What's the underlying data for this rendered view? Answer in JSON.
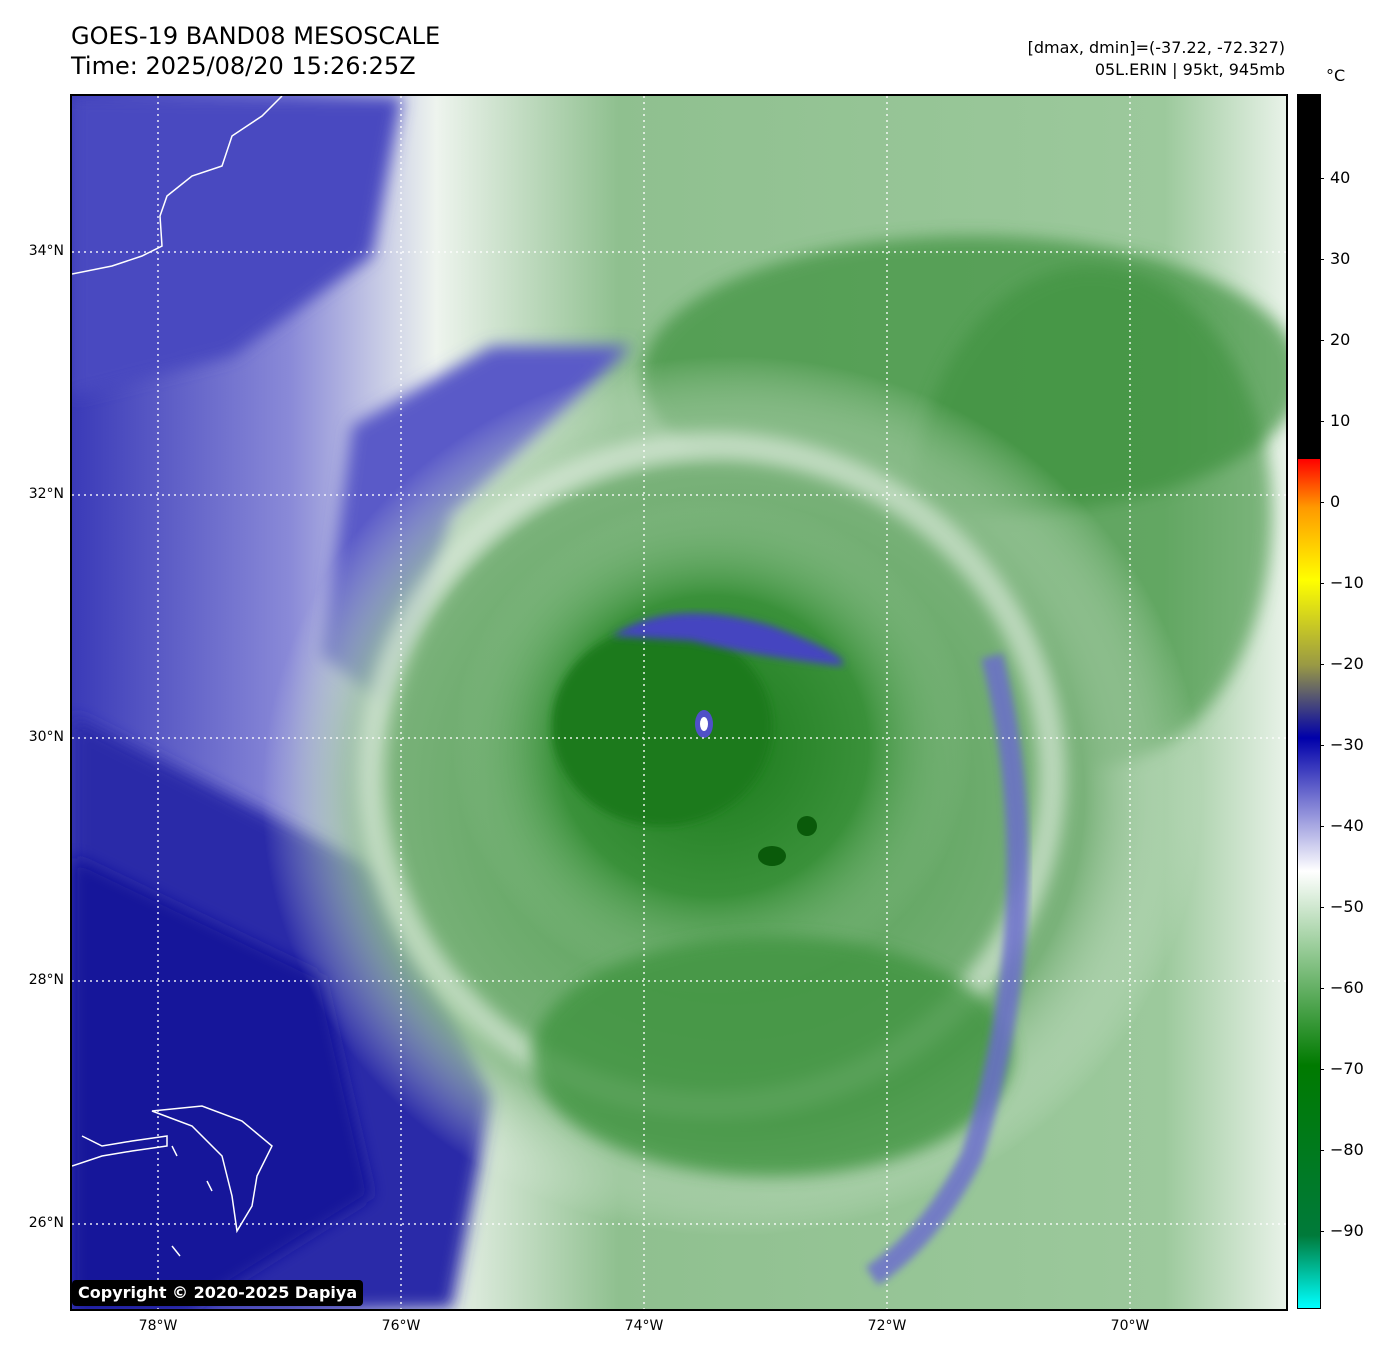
{
  "header": {
    "title": "GOES-19 BAND08 MESOSCALE",
    "time": "Time: 2025/08/20 15:26:25Z",
    "range_text": "[dmax, dmin]=(-37.22, -72.327)",
    "storm_text": "05L.ERIN | 95kt, 945mb"
  },
  "map": {
    "lat_labels": [
      "34°N",
      "32°N",
      "30°N",
      "28°N",
      "26°N"
    ],
    "lon_labels": [
      "78°W",
      "76°W",
      "74°W",
      "72°W",
      "70°W"
    ],
    "grid_lines": "dotted",
    "colors": {
      "cold_cloud": "#1f7a1f",
      "mid_cloud": "#8fc08f",
      "thin_cloud": "#f3f8f3",
      "clear_air": "#3a3ab8",
      "coastline": "#ffffff"
    }
  },
  "copyright": "Copyright © 2020-2025 Dapiya",
  "colorbar": {
    "unit": "°C",
    "ticks": [
      "40",
      "30",
      "20",
      "10",
      "0",
      "−10",
      "−20",
      "−30",
      "−40",
      "−50",
      "−60",
      "−70",
      "−80",
      "−90"
    ],
    "colors": [
      "#00ffff",
      "#007a3a",
      "#007a00",
      "#9ecf9e",
      "#ffffff",
      "#0000aa",
      "#999944",
      "#ffff00",
      "#ff9900",
      "#ff0000",
      "#000000"
    ]
  }
}
